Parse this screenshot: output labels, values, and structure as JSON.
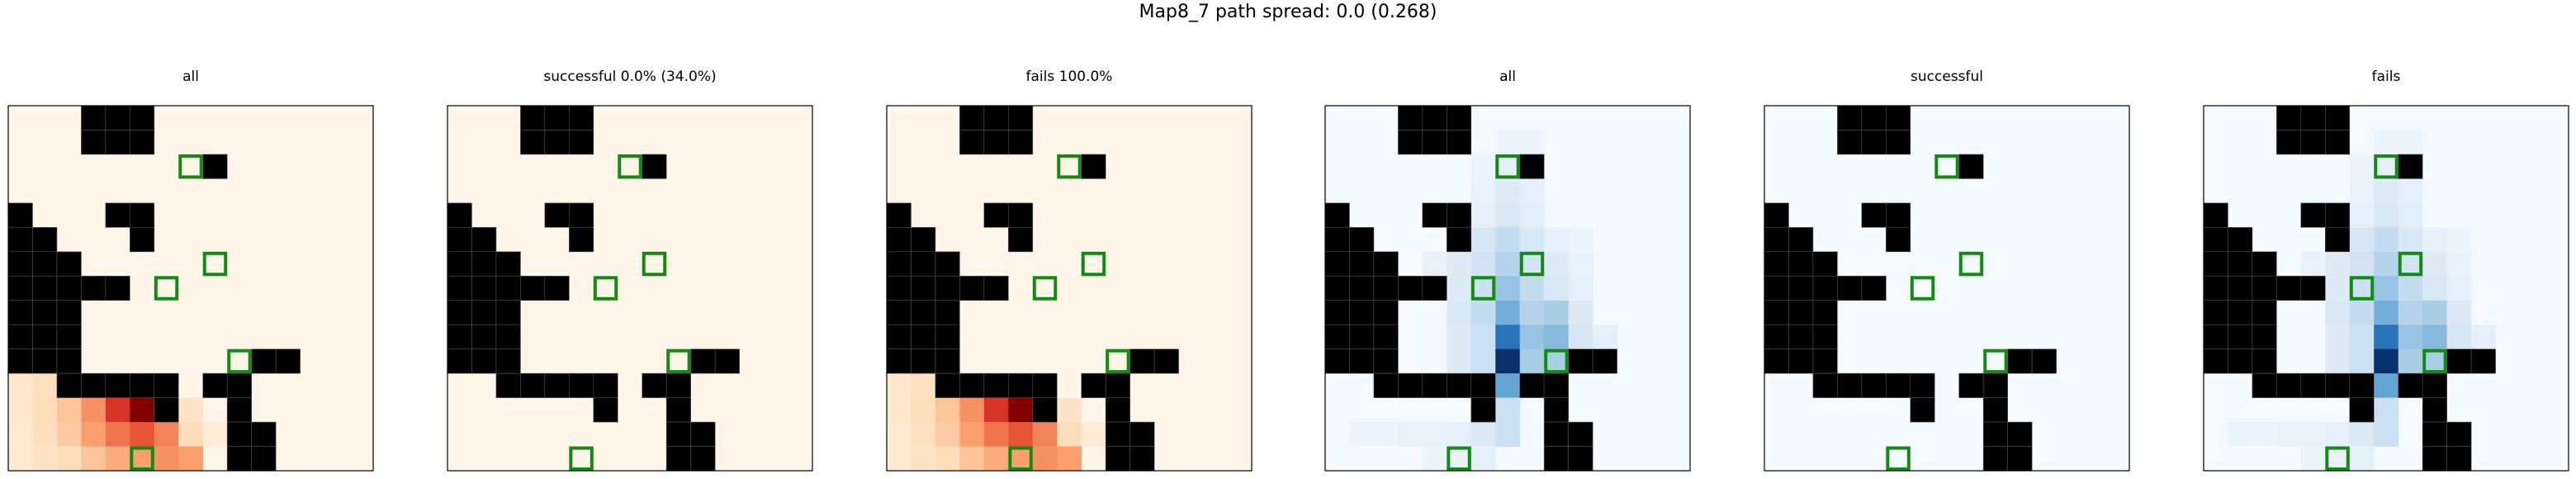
{
  "figure": {
    "title": "Map8_7 path spread: 0.0 (0.268)"
  },
  "chart_data": [
    {
      "type": "heatmap",
      "title": "all",
      "colormap": "Oranges-to-red",
      "grid_size": 15,
      "walls_shown": true,
      "path_heat": [
        {
          "row": 11,
          "col": 0,
          "v": 0.12
        },
        {
          "row": 11,
          "col": 1,
          "v": 0.18
        },
        {
          "row": 11,
          "col": 2,
          "v": 0.25
        },
        {
          "row": 11,
          "col": 3,
          "v": 0.45
        },
        {
          "row": 11,
          "col": 4,
          "v": 0.6
        },
        {
          "row": 11,
          "col": 5,
          "v": 0.45
        },
        {
          "row": 12,
          "col": 0,
          "v": 0.12
        },
        {
          "row": 12,
          "col": 1,
          "v": 0.2
        },
        {
          "row": 12,
          "col": 2,
          "v": 0.3
        },
        {
          "row": 12,
          "col": 3,
          "v": 0.5
        },
        {
          "row": 12,
          "col": 4,
          "v": 0.8
        },
        {
          "row": 12,
          "col": 5,
          "v": 1.0
        },
        {
          "row": 12,
          "col": 6,
          "v": 0.4
        },
        {
          "row": 12,
          "col": 7,
          "v": 0.15
        },
        {
          "row": 13,
          "col": 0,
          "v": 0.1
        },
        {
          "row": 13,
          "col": 1,
          "v": 0.18
        },
        {
          "row": 13,
          "col": 2,
          "v": 0.28
        },
        {
          "row": 13,
          "col": 3,
          "v": 0.45
        },
        {
          "row": 13,
          "col": 4,
          "v": 0.6
        },
        {
          "row": 13,
          "col": 5,
          "v": 0.7
        },
        {
          "row": 13,
          "col": 6,
          "v": 0.55
        },
        {
          "row": 13,
          "col": 7,
          "v": 0.2
        },
        {
          "row": 13,
          "col": 8,
          "v": 0.08
        },
        {
          "row": 14,
          "col": 0,
          "v": 0.1
        },
        {
          "row": 14,
          "col": 1,
          "v": 0.15
        },
        {
          "row": 14,
          "col": 2,
          "v": 0.2
        },
        {
          "row": 14,
          "col": 3,
          "v": 0.3
        },
        {
          "row": 14,
          "col": 4,
          "v": 0.4
        },
        {
          "row": 14,
          "col": 5,
          "v": 0.45
        },
        {
          "row": 14,
          "col": 6,
          "v": 0.5
        },
        {
          "row": 14,
          "col": 7,
          "v": 0.45
        }
      ]
    },
    {
      "type": "heatmap",
      "title": "successful 0.0% (34.0%)",
      "colormap": "Oranges-to-red",
      "grid_size": 15,
      "walls_shown": true,
      "path_heat": []
    },
    {
      "type": "heatmap",
      "title": "fails 100.0%",
      "colormap": "Oranges-to-red",
      "grid_size": 15,
      "walls_shown": true,
      "path_heat": [
        {
          "row": 11,
          "col": 0,
          "v": 0.12
        },
        {
          "row": 11,
          "col": 1,
          "v": 0.18
        },
        {
          "row": 11,
          "col": 2,
          "v": 0.25
        },
        {
          "row": 11,
          "col": 3,
          "v": 0.45
        },
        {
          "row": 11,
          "col": 4,
          "v": 0.6
        },
        {
          "row": 11,
          "col": 5,
          "v": 0.45
        },
        {
          "row": 12,
          "col": 0,
          "v": 0.12
        },
        {
          "row": 12,
          "col": 1,
          "v": 0.2
        },
        {
          "row": 12,
          "col": 2,
          "v": 0.3
        },
        {
          "row": 12,
          "col": 3,
          "v": 0.5
        },
        {
          "row": 12,
          "col": 4,
          "v": 0.8
        },
        {
          "row": 12,
          "col": 5,
          "v": 1.0
        },
        {
          "row": 12,
          "col": 6,
          "v": 0.4
        },
        {
          "row": 12,
          "col": 7,
          "v": 0.15
        },
        {
          "row": 13,
          "col": 0,
          "v": 0.1
        },
        {
          "row": 13,
          "col": 1,
          "v": 0.18
        },
        {
          "row": 13,
          "col": 2,
          "v": 0.28
        },
        {
          "row": 13,
          "col": 3,
          "v": 0.45
        },
        {
          "row": 13,
          "col": 4,
          "v": 0.6
        },
        {
          "row": 13,
          "col": 5,
          "v": 0.7
        },
        {
          "row": 13,
          "col": 6,
          "v": 0.55
        },
        {
          "row": 13,
          "col": 7,
          "v": 0.2
        },
        {
          "row": 13,
          "col": 8,
          "v": 0.08
        },
        {
          "row": 14,
          "col": 0,
          "v": 0.1
        },
        {
          "row": 14,
          "col": 1,
          "v": 0.15
        },
        {
          "row": 14,
          "col": 2,
          "v": 0.2
        },
        {
          "row": 14,
          "col": 3,
          "v": 0.3
        },
        {
          "row": 14,
          "col": 4,
          "v": 0.4
        },
        {
          "row": 14,
          "col": 5,
          "v": 0.45
        },
        {
          "row": 14,
          "col": 6,
          "v": 0.5
        },
        {
          "row": 14,
          "col": 7,
          "v": 0.45
        }
      ]
    },
    {
      "type": "heatmap",
      "title": "all",
      "colormap": "Blues",
      "grid_size": 15,
      "walls_shown": true,
      "path_heat": [
        {
          "row": 1,
          "col": 7,
          "v": 0.05
        },
        {
          "row": 1,
          "col": 8,
          "v": 0.05
        },
        {
          "row": 2,
          "col": 6,
          "v": 0.05
        },
        {
          "row": 2,
          "col": 7,
          "v": 0.1
        },
        {
          "row": 2,
          "col": 8,
          "v": 0.08
        },
        {
          "row": 3,
          "col": 6,
          "v": 0.08
        },
        {
          "row": 3,
          "col": 7,
          "v": 0.15
        },
        {
          "row": 3,
          "col": 8,
          "v": 0.1
        },
        {
          "row": 4,
          "col": 5,
          "v": 0.05
        },
        {
          "row": 4,
          "col": 6,
          "v": 0.1
        },
        {
          "row": 4,
          "col": 7,
          "v": 0.18
        },
        {
          "row": 4,
          "col": 8,
          "v": 0.12
        },
        {
          "row": 5,
          "col": 5,
          "v": 0.1
        },
        {
          "row": 5,
          "col": 6,
          "v": 0.2
        },
        {
          "row": 5,
          "col": 7,
          "v": 0.28
        },
        {
          "row": 5,
          "col": 8,
          "v": 0.18
        },
        {
          "row": 5,
          "col": 9,
          "v": 0.1
        },
        {
          "row": 5,
          "col": 10,
          "v": 0.05
        },
        {
          "row": 6,
          "col": 4,
          "v": 0.08
        },
        {
          "row": 6,
          "col": 5,
          "v": 0.15
        },
        {
          "row": 6,
          "col": 6,
          "v": 0.22
        },
        {
          "row": 6,
          "col": 7,
          "v": 0.35
        },
        {
          "row": 6,
          "col": 8,
          "v": 0.22
        },
        {
          "row": 6,
          "col": 9,
          "v": 0.15
        },
        {
          "row": 6,
          "col": 10,
          "v": 0.08
        },
        {
          "row": 7,
          "col": 5,
          "v": 0.15
        },
        {
          "row": 7,
          "col": 6,
          "v": 0.25
        },
        {
          "row": 7,
          "col": 7,
          "v": 0.45
        },
        {
          "row": 7,
          "col": 8,
          "v": 0.28
        },
        {
          "row": 7,
          "col": 9,
          "v": 0.18
        },
        {
          "row": 7,
          "col": 10,
          "v": 0.1
        },
        {
          "row": 8,
          "col": 5,
          "v": 0.18
        },
        {
          "row": 8,
          "col": 6,
          "v": 0.28
        },
        {
          "row": 8,
          "col": 7,
          "v": 0.55
        },
        {
          "row": 8,
          "col": 8,
          "v": 0.35
        },
        {
          "row": 8,
          "col": 9,
          "v": 0.4
        },
        {
          "row": 8,
          "col": 10,
          "v": 0.15
        },
        {
          "row": 9,
          "col": 5,
          "v": 0.15
        },
        {
          "row": 9,
          "col": 6,
          "v": 0.25
        },
        {
          "row": 9,
          "col": 7,
          "v": 0.8
        },
        {
          "row": 9,
          "col": 8,
          "v": 0.45
        },
        {
          "row": 9,
          "col": 9,
          "v": 0.5
        },
        {
          "row": 9,
          "col": 10,
          "v": 0.2
        },
        {
          "row": 9,
          "col": 11,
          "v": 0.1
        },
        {
          "row": 10,
          "col": 5,
          "v": 0.15
        },
        {
          "row": 10,
          "col": 6,
          "v": 0.25
        },
        {
          "row": 10,
          "col": 7,
          "v": 1.0
        },
        {
          "row": 10,
          "col": 8,
          "v": 0.4
        },
        {
          "row": 10,
          "col": 9,
          "v": 0.4
        },
        {
          "row": 10,
          "col": 10,
          "v": 0.15
        },
        {
          "row": 10,
          "col": 11,
          "v": 0.08
        },
        {
          "row": 11,
          "col": 6,
          "v": 0.18
        },
        {
          "row": 11,
          "col": 7,
          "v": 0.6
        },
        {
          "row": 12,
          "col": 6,
          "v": 0.15
        },
        {
          "row": 12,
          "col": 7,
          "v": 0.25
        },
        {
          "row": 13,
          "col": 1,
          "v": 0.05
        },
        {
          "row": 13,
          "col": 2,
          "v": 0.05
        },
        {
          "row": 13,
          "col": 3,
          "v": 0.08
        },
        {
          "row": 13,
          "col": 4,
          "v": 0.08
        },
        {
          "row": 13,
          "col": 5,
          "v": 0.1
        },
        {
          "row": 13,
          "col": 6,
          "v": 0.15
        },
        {
          "row": 13,
          "col": 7,
          "v": 0.25
        },
        {
          "row": 14,
          "col": 4,
          "v": 0.05
        },
        {
          "row": 14,
          "col": 5,
          "v": 0.08
        },
        {
          "row": 14,
          "col": 6,
          "v": 0.1
        }
      ]
    },
    {
      "type": "heatmap",
      "title": "successful",
      "colormap": "Blues",
      "grid_size": 15,
      "walls_shown": true,
      "path_heat": []
    },
    {
      "type": "heatmap",
      "title": "fails",
      "colormap": "Blues",
      "grid_size": 15,
      "walls_shown": true,
      "path_heat": [
        {
          "row": 1,
          "col": 7,
          "v": 0.05
        },
        {
          "row": 1,
          "col": 8,
          "v": 0.05
        },
        {
          "row": 2,
          "col": 6,
          "v": 0.05
        },
        {
          "row": 2,
          "col": 7,
          "v": 0.1
        },
        {
          "row": 2,
          "col": 8,
          "v": 0.08
        },
        {
          "row": 3,
          "col": 6,
          "v": 0.08
        },
        {
          "row": 3,
          "col": 7,
          "v": 0.15
        },
        {
          "row": 3,
          "col": 8,
          "v": 0.1
        },
        {
          "row": 4,
          "col": 5,
          "v": 0.05
        },
        {
          "row": 4,
          "col": 6,
          "v": 0.1
        },
        {
          "row": 4,
          "col": 7,
          "v": 0.18
        },
        {
          "row": 4,
          "col": 8,
          "v": 0.12
        },
        {
          "row": 5,
          "col": 5,
          "v": 0.1
        },
        {
          "row": 5,
          "col": 6,
          "v": 0.2
        },
        {
          "row": 5,
          "col": 7,
          "v": 0.28
        },
        {
          "row": 5,
          "col": 8,
          "v": 0.18
        },
        {
          "row": 5,
          "col": 9,
          "v": 0.1
        },
        {
          "row": 5,
          "col": 10,
          "v": 0.05
        },
        {
          "row": 6,
          "col": 4,
          "v": 0.08
        },
        {
          "row": 6,
          "col": 5,
          "v": 0.15
        },
        {
          "row": 6,
          "col": 6,
          "v": 0.22
        },
        {
          "row": 6,
          "col": 7,
          "v": 0.35
        },
        {
          "row": 6,
          "col": 8,
          "v": 0.22
        },
        {
          "row": 6,
          "col": 9,
          "v": 0.15
        },
        {
          "row": 6,
          "col": 10,
          "v": 0.08
        },
        {
          "row": 7,
          "col": 5,
          "v": 0.15
        },
        {
          "row": 7,
          "col": 6,
          "v": 0.25
        },
        {
          "row": 7,
          "col": 7,
          "v": 0.45
        },
        {
          "row": 7,
          "col": 8,
          "v": 0.28
        },
        {
          "row": 7,
          "col": 9,
          "v": 0.18
        },
        {
          "row": 7,
          "col": 10,
          "v": 0.1
        },
        {
          "row": 8,
          "col": 5,
          "v": 0.18
        },
        {
          "row": 8,
          "col": 6,
          "v": 0.28
        },
        {
          "row": 8,
          "col": 7,
          "v": 0.55
        },
        {
          "row": 8,
          "col": 8,
          "v": 0.35
        },
        {
          "row": 8,
          "col": 9,
          "v": 0.4
        },
        {
          "row": 8,
          "col": 10,
          "v": 0.15
        },
        {
          "row": 9,
          "col": 5,
          "v": 0.15
        },
        {
          "row": 9,
          "col": 6,
          "v": 0.25
        },
        {
          "row": 9,
          "col": 7,
          "v": 0.8
        },
        {
          "row": 9,
          "col": 8,
          "v": 0.45
        },
        {
          "row": 9,
          "col": 9,
          "v": 0.5
        },
        {
          "row": 9,
          "col": 10,
          "v": 0.2
        },
        {
          "row": 9,
          "col": 11,
          "v": 0.1
        },
        {
          "row": 10,
          "col": 5,
          "v": 0.15
        },
        {
          "row": 10,
          "col": 6,
          "v": 0.25
        },
        {
          "row": 10,
          "col": 7,
          "v": 1.0
        },
        {
          "row": 10,
          "col": 8,
          "v": 0.4
        },
        {
          "row": 10,
          "col": 9,
          "v": 0.4
        },
        {
          "row": 10,
          "col": 10,
          "v": 0.15
        },
        {
          "row": 10,
          "col": 11,
          "v": 0.08
        },
        {
          "row": 11,
          "col": 6,
          "v": 0.18
        },
        {
          "row": 11,
          "col": 7,
          "v": 0.6
        },
        {
          "row": 12,
          "col": 6,
          "v": 0.15
        },
        {
          "row": 12,
          "col": 7,
          "v": 0.25
        },
        {
          "row": 13,
          "col": 1,
          "v": 0.05
        },
        {
          "row": 13,
          "col": 2,
          "v": 0.05
        },
        {
          "row": 13,
          "col": 3,
          "v": 0.08
        },
        {
          "row": 13,
          "col": 4,
          "v": 0.08
        },
        {
          "row": 13,
          "col": 5,
          "v": 0.1
        },
        {
          "row": 13,
          "col": 6,
          "v": 0.15
        },
        {
          "row": 13,
          "col": 7,
          "v": 0.25
        },
        {
          "row": 14,
          "col": 4,
          "v": 0.05
        },
        {
          "row": 14,
          "col": 5,
          "v": 0.08
        },
        {
          "row": 14,
          "col": 6,
          "v": 0.1
        }
      ]
    }
  ],
  "map": {
    "grid_size": 15,
    "walls": [
      [
        0,
        3
      ],
      [
        0,
        4
      ],
      [
        0,
        5
      ],
      [
        1,
        3
      ],
      [
        1,
        4
      ],
      [
        1,
        5
      ],
      [
        2,
        8
      ],
      [
        4,
        0
      ],
      [
        4,
        4
      ],
      [
        4,
        5
      ],
      [
        5,
        0
      ],
      [
        5,
        1
      ],
      [
        5,
        5
      ],
      [
        6,
        0
      ],
      [
        6,
        1
      ],
      [
        6,
        2
      ],
      [
        7,
        0
      ],
      [
        7,
        1
      ],
      [
        7,
        2
      ],
      [
        7,
        3
      ],
      [
        7,
        4
      ],
      [
        8,
        0
      ],
      [
        8,
        1
      ],
      [
        8,
        2
      ],
      [
        9,
        0
      ],
      [
        9,
        1
      ],
      [
        9,
        2
      ],
      [
        10,
        0
      ],
      [
        10,
        1
      ],
      [
        10,
        2
      ],
      [
        10,
        10
      ],
      [
        10,
        11
      ],
      [
        11,
        2
      ],
      [
        11,
        3
      ],
      [
        11,
        4
      ],
      [
        11,
        5
      ],
      [
        11,
        6
      ],
      [
        11,
        8
      ],
      [
        11,
        9
      ],
      [
        12,
        6
      ],
      [
        12,
        9
      ],
      [
        13,
        9
      ],
      [
        13,
        10
      ],
      [
        14,
        9
      ],
      [
        14,
        10
      ]
    ],
    "goals": [
      [
        2,
        7
      ],
      [
        6,
        8
      ],
      [
        7,
        6
      ],
      [
        10,
        9
      ],
      [
        14,
        5
      ]
    ],
    "goal_color": "#138a13",
    "wall_color": "#000000"
  }
}
